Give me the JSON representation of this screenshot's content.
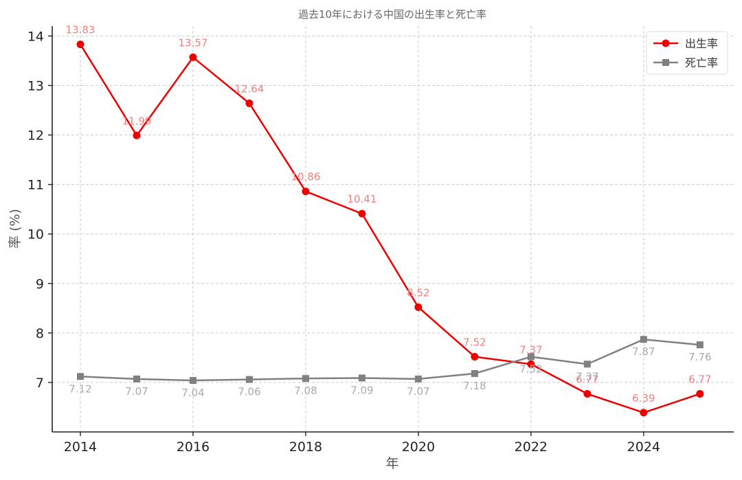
{
  "chart_data": {
    "type": "line",
    "title": "過去10年における中国の出生率と死亡率",
    "xlabel": "年",
    "ylabel": "率 (%)",
    "x": [
      2014,
      2015,
      2016,
      2017,
      2018,
      2019,
      2020,
      2021,
      2022,
      2023,
      2024,
      2025
    ],
    "x_ticks": [
      2014,
      2016,
      2018,
      2020,
      2022,
      2024
    ],
    "y_ticks": [
      7,
      8,
      9,
      10,
      11,
      12,
      13,
      14
    ],
    "xlim": [
      2013.5,
      2025.6
    ],
    "ylim": [
      6.0,
      14.2
    ],
    "grid": true,
    "legend_position": "top-right",
    "series": [
      {
        "name": "出生率",
        "color": "#ee0000",
        "label_color": "#f08080",
        "marker": "circle",
        "label_position": "above",
        "values": [
          13.83,
          11.99,
          13.57,
          12.64,
          10.86,
          10.41,
          8.52,
          7.52,
          7.37,
          6.77,
          6.39,
          6.77
        ]
      },
      {
        "name": "死亡率",
        "color": "#808080",
        "label_color": "#aaaaaa",
        "marker": "square",
        "label_position": "below",
        "values": [
          7.12,
          7.07,
          7.04,
          7.06,
          7.08,
          7.09,
          7.07,
          7.18,
          7.52,
          7.37,
          7.87,
          7.76
        ]
      }
    ]
  }
}
